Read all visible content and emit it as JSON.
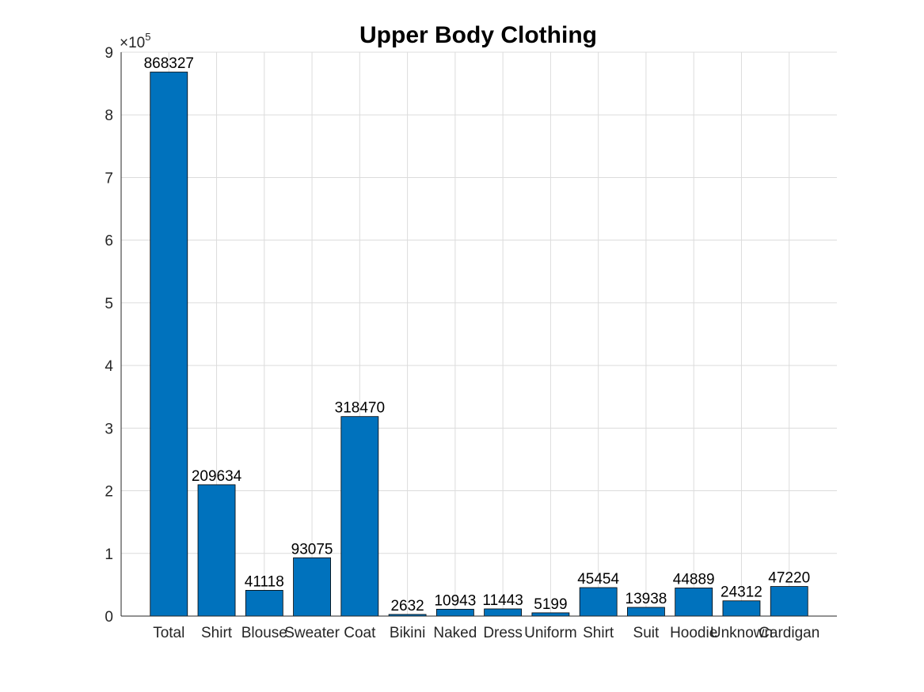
{
  "chart_data": {
    "type": "bar",
    "title": "Upper Body Clothing",
    "xlabel": "",
    "ylabel": "",
    "categories": [
      "Total",
      "Shirt",
      "Blouse",
      "Sweater",
      "Coat",
      "Bikini",
      "Naked",
      "Dress",
      "Uniform",
      "Shirt",
      "Suit",
      "Hoodie",
      "Unknown",
      "Cardigan"
    ],
    "values": [
      868327,
      209634,
      41118,
      93075,
      318470,
      2632,
      10943,
      11443,
      5199,
      45454,
      13938,
      44889,
      24312,
      47220
    ],
    "data_labels": [
      "868327",
      "209634",
      "41118",
      "93075",
      "318470",
      "2632",
      "10943",
      "11443",
      "5199",
      "45454",
      "13938",
      "44889",
      "24312",
      "47220"
    ],
    "ylim": [
      0,
      900000
    ],
    "y_ticks": [
      0,
      1,
      2,
      3,
      4,
      5,
      6,
      7,
      8,
      9
    ],
    "y_tick_labels": [
      "0",
      "1",
      "2",
      "3",
      "4",
      "5",
      "6",
      "7",
      "8",
      "9"
    ],
    "y_exponent_base": "×10",
    "y_exponent_power": "5",
    "grid": true,
    "legend": "none",
    "bar_color": "#0072BD"
  }
}
